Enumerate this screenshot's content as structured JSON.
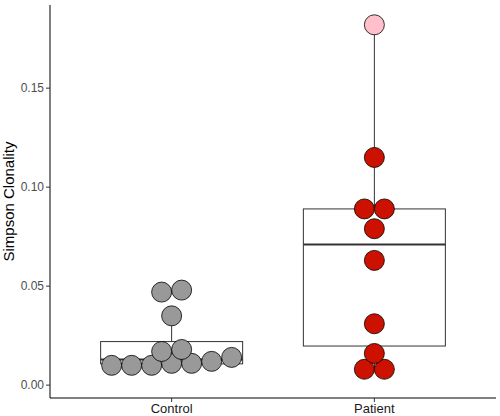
{
  "chart_data": {
    "type": "box",
    "y_label": "Simpson Clonality",
    "categories": [
      "Control",
      "Patient"
    ],
    "values": [
      [
        0.01,
        0.01,
        0.01,
        0.011,
        0.011,
        0.012,
        0.014,
        0.017,
        0.018,
        0.035,
        0.047,
        0.048
      ],
      [
        0.008,
        0.008,
        0.016,
        0.031,
        0.063,
        0.079,
        0.089,
        0.089,
        0.115,
        0.182
      ]
    ],
    "colors": [
      [
        "#999999",
        "#999999",
        "#999999",
        "#999999",
        "#999999",
        "#999999",
        "#999999",
        "#999999",
        "#999999",
        "#999999",
        "#999999",
        "#999999"
      ],
      [
        "#cc1100",
        "#cc1100",
        "#cc1100",
        "#cc1100",
        "#cc1100",
        "#cc1100",
        "#cc1100",
        "#cc1100",
        "#cc1100",
        "#ffc0cb"
      ]
    ],
    "boxes": [
      {
        "lower": 0.01,
        "q1": 0.01075,
        "median": 0.013,
        "q3": 0.022,
        "upper": 0.035
      },
      {
        "lower": 0.008,
        "q1": 0.01975,
        "median": 0.071,
        "q3": 0.089,
        "upper": 0.182
      }
    ],
    "ylim": [
      -0.0065,
      0.192
    ],
    "yticks": [
      {
        "value": 0,
        "label": "0.00"
      },
      {
        "value": 0.05,
        "label": "0.05"
      },
      {
        "value": 0.1,
        "label": "0.10"
      },
      {
        "value": 0.15,
        "label": "0.15"
      }
    ],
    "grid": false
  }
}
